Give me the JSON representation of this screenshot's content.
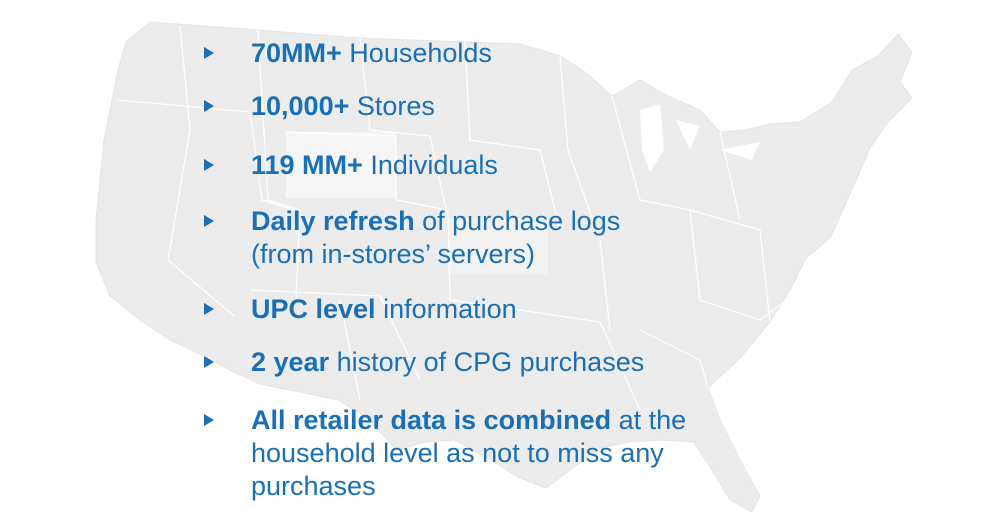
{
  "colors": {
    "text": "#1a6fb5",
    "map_fill": "#ececec",
    "map_border": "#ffffff"
  },
  "map": {
    "icon": "us-map-silhouette"
  },
  "bullets": [
    {
      "bold": "70MM+",
      "rest": " Households"
    },
    {
      "bold": "10,000+",
      "rest": " Stores"
    },
    {
      "bold": "119 MM+",
      "rest": " Individuals"
    },
    {
      "bold": "Daily refresh",
      "rest": " of purchase logs (from in-stores’ servers)"
    },
    {
      "bold": "UPC level",
      "rest": " information"
    },
    {
      "bold": "2 year",
      "rest": " history of CPG purchases"
    },
    {
      "bold": "All retailer data is combined",
      "rest": " at the household level as not to miss any purchases"
    }
  ]
}
